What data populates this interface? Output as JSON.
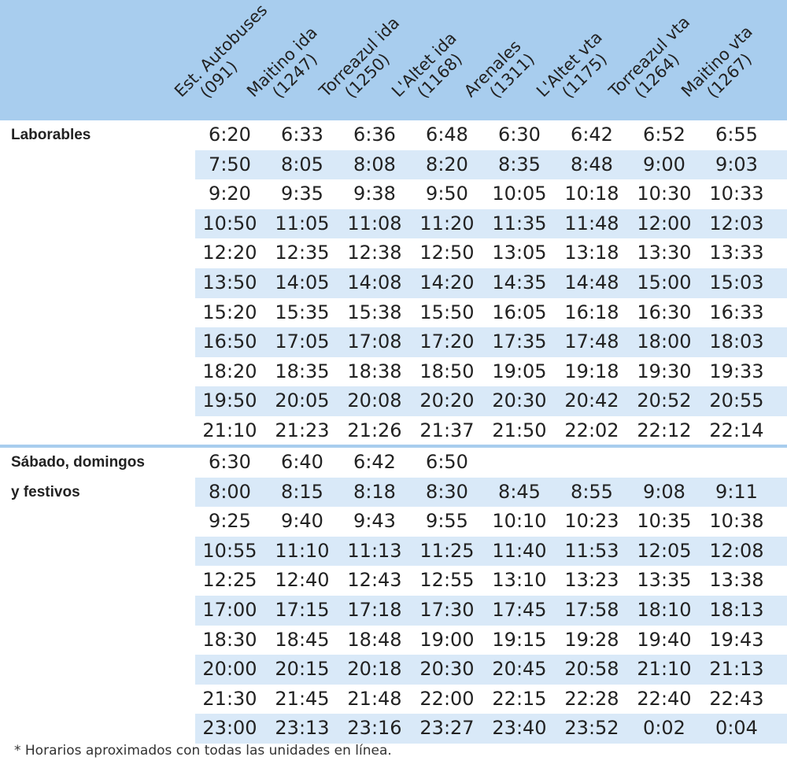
{
  "stops": [
    {
      "name": "Est. Autobuses",
      "code": "(091)"
    },
    {
      "name": "Maitino ida",
      "code": "(1247)"
    },
    {
      "name": "Torreazul ida",
      "code": "(1250)"
    },
    {
      "name": "L'Altet ida",
      "code": "(1168)"
    },
    {
      "name": "Arenales",
      "code": "(1311)"
    },
    {
      "name": "L'Altet vta",
      "code": "(1175)"
    },
    {
      "name": "Torreazul vta",
      "code": "(1264)"
    },
    {
      "name": "Maitino vta",
      "code": "(1267)"
    }
  ],
  "sections": [
    {
      "label_lines": [
        "Laborables"
      ],
      "rows": [
        [
          "6:20",
          "6:33",
          "6:36",
          "6:48",
          "6:30",
          "6:42",
          "6:52",
          "6:55"
        ],
        [
          "7:50",
          "8:05",
          "8:08",
          "8:20",
          "8:35",
          "8:48",
          "9:00",
          "9:03"
        ],
        [
          "9:20",
          "9:35",
          "9:38",
          "9:50",
          "10:05",
          "10:18",
          "10:30",
          "10:33"
        ],
        [
          "10:50",
          "11:05",
          "11:08",
          "11:20",
          "11:35",
          "11:48",
          "12:00",
          "12:03"
        ],
        [
          "12:20",
          "12:35",
          "12:38",
          "12:50",
          "13:05",
          "13:18",
          "13:30",
          "13:33"
        ],
        [
          "13:50",
          "14:05",
          "14:08",
          "14:20",
          "14:35",
          "14:48",
          "15:00",
          "15:03"
        ],
        [
          "15:20",
          "15:35",
          "15:38",
          "15:50",
          "16:05",
          "16:18",
          "16:30",
          "16:33"
        ],
        [
          "16:50",
          "17:05",
          "17:08",
          "17:20",
          "17:35",
          "17:48",
          "18:00",
          "18:03"
        ],
        [
          "18:20",
          "18:35",
          "18:38",
          "18:50",
          "19:05",
          "19:18",
          "19:30",
          "19:33"
        ],
        [
          "19:50",
          "20:05",
          "20:08",
          "20:20",
          "20:30",
          "20:42",
          "20:52",
          "20:55"
        ],
        [
          "21:10",
          "21:23",
          "21:26",
          "21:37",
          "21:50",
          "22:02",
          "22:12",
          "22:14"
        ]
      ]
    },
    {
      "label_lines": [
        "Sábado, domingos",
        "y festivos"
      ],
      "rows": [
        [
          "6:30",
          "6:40",
          "6:42",
          "6:50",
          "",
          "",
          "",
          ""
        ],
        [
          "8:00",
          "8:15",
          "8:18",
          "8:30",
          "8:45",
          "8:55",
          "9:08",
          "9:11"
        ],
        [
          "9:25",
          "9:40",
          "9:43",
          "9:55",
          "10:10",
          "10:23",
          "10:35",
          "10:38"
        ],
        [
          "10:55",
          "11:10",
          "11:13",
          "11:25",
          "11:40",
          "11:53",
          "12:05",
          "12:08"
        ],
        [
          "12:25",
          "12:40",
          "12:43",
          "12:55",
          "13:10",
          "13:23",
          "13:35",
          "13:38"
        ],
        [
          "17:00",
          "17:15",
          "17:18",
          "17:30",
          "17:45",
          "17:58",
          "18:10",
          "18:13"
        ],
        [
          "18:30",
          "18:45",
          "18:48",
          "19:00",
          "19:15",
          "19:28",
          "19:40",
          "19:43"
        ],
        [
          "20:00",
          "20:15",
          "20:18",
          "20:30",
          "20:45",
          "20:58",
          "21:10",
          "21:13"
        ],
        [
          "21:30",
          "21:45",
          "21:48",
          "22:00",
          "22:15",
          "22:28",
          "22:40",
          "22:43"
        ],
        [
          "23:00",
          "23:13",
          "23:16",
          "23:27",
          "23:40",
          "23:52",
          "0:02",
          "0:04"
        ]
      ]
    }
  ],
  "footnote": "* Horarios aproximados con todas las unidades en línea.",
  "colors": {
    "header_bg": "#a8cdee",
    "row_shade": "#d9e9f8",
    "divider": "#a8cdee"
  }
}
